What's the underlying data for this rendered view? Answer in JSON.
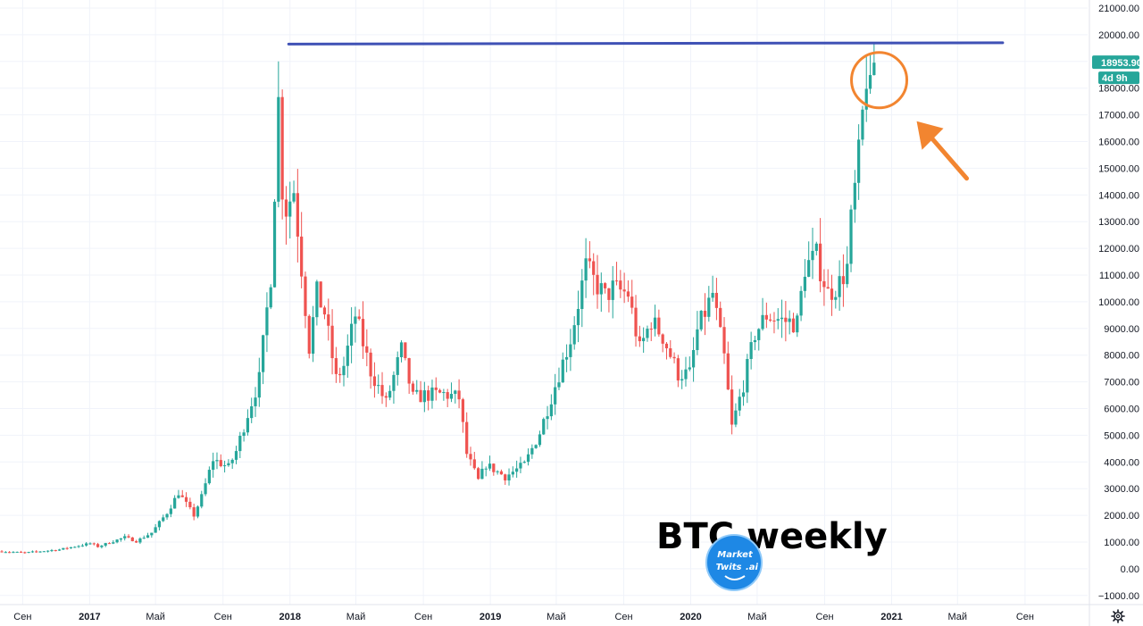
{
  "chart_data": {
    "type": "candlestick",
    "title": "BTC weekly",
    "timeframe": "weekly",
    "ylim": [
      -1500,
      21000
    ],
    "y_ticks": [
      21000,
      20000,
      19000,
      18000,
      17000,
      16000,
      15000,
      14000,
      13000,
      12000,
      11000,
      10000,
      9000,
      8000,
      7000,
      6000,
      5000,
      4000,
      3000,
      2000,
      1000,
      0,
      -1000
    ],
    "y_tick_labels": [
      "21000.00",
      "20000.00",
      "19000.00",
      "18000.00",
      "17000.00",
      "16000.00",
      "15000.00",
      "14000.00",
      "13000.00",
      "12000.00",
      "11000.00",
      "10000.00",
      "9000.00",
      "8000.00",
      "7000.00",
      "6000.00",
      "5000.00",
      "4000.00",
      "3000.00",
      "2000.00",
      "1000.00",
      "0.00",
      "−1000.00"
    ],
    "x_range": [
      "2016-07-25",
      "2021-11-01"
    ],
    "x_ticks": [
      {
        "date": "2016-09-01",
        "label": "Сен",
        "major": false
      },
      {
        "date": "2017-01-01",
        "label": "2017",
        "major": true
      },
      {
        "date": "2017-05-01",
        "label": "Май",
        "major": false
      },
      {
        "date": "2017-09-01",
        "label": "Сен",
        "major": false
      },
      {
        "date": "2018-01-01",
        "label": "2018",
        "major": true
      },
      {
        "date": "2018-05-01",
        "label": "Май",
        "major": false
      },
      {
        "date": "2018-09-01",
        "label": "Сен",
        "major": false
      },
      {
        "date": "2019-01-01",
        "label": "2019",
        "major": true
      },
      {
        "date": "2019-05-01",
        "label": "Май",
        "major": false
      },
      {
        "date": "2019-09-01",
        "label": "Сен",
        "major": false
      },
      {
        "date": "2020-01-01",
        "label": "2020",
        "major": true
      },
      {
        "date": "2020-05-01",
        "label": "Май",
        "major": false
      },
      {
        "date": "2020-09-01",
        "label": "Сен",
        "major": false
      },
      {
        "date": "2021-01-01",
        "label": "2021",
        "major": true
      },
      {
        "date": "2021-05-01",
        "label": "Май",
        "major": false
      },
      {
        "date": "2021-09-01",
        "label": "Сен",
        "major": false
      }
    ],
    "close_anchors": [
      [
        "2016-07-25",
        650
      ],
      [
        "2016-09-05",
        600
      ],
      [
        "2016-11-07",
        720
      ],
      [
        "2017-01-02",
        950
      ],
      [
        "2017-01-16",
        830
      ],
      [
        "2017-03-06",
        1180
      ],
      [
        "2017-03-27",
        1030
      ],
      [
        "2017-04-24",
        1350
      ],
      [
        "2017-05-22",
        2100
      ],
      [
        "2017-06-12",
        2850
      ],
      [
        "2017-07-10",
        2000
      ],
      [
        "2017-07-24",
        2700
      ],
      [
        "2017-08-14",
        4100
      ],
      [
        "2017-09-11",
        3800
      ],
      [
        "2017-09-25",
        4400
      ],
      [
        "2017-10-16",
        5800
      ],
      [
        "2017-11-06",
        7100
      ],
      [
        "2017-11-27",
        11000
      ],
      [
        "2017-12-11",
        17500
      ],
      [
        "2017-12-18",
        14300
      ],
      [
        "2017-12-25",
        13500
      ],
      [
        "2018-01-08",
        14200
      ],
      [
        "2018-01-22",
        11300
      ],
      [
        "2018-02-05",
        8300
      ],
      [
        "2018-02-19",
        10300
      ],
      [
        "2018-03-05",
        9600
      ],
      [
        "2018-03-26",
        7100
      ],
      [
        "2018-04-09",
        7600
      ],
      [
        "2018-04-30",
        9500
      ],
      [
        "2018-05-28",
        7400
      ],
      [
        "2018-06-25",
        6200
      ],
      [
        "2018-07-23",
        8200
      ],
      [
        "2018-08-13",
        6400
      ],
      [
        "2018-09-03",
        6500
      ],
      [
        "2018-10-08",
        6550
      ],
      [
        "2018-11-05",
        6400
      ],
      [
        "2018-11-19",
        4300
      ],
      [
        "2018-12-10",
        3300
      ],
      [
        "2018-12-24",
        3900
      ],
      [
        "2019-01-28",
        3450
      ],
      [
        "2019-03-04",
        3900
      ],
      [
        "2019-04-01",
        5100
      ],
      [
        "2019-05-06",
        7300
      ],
      [
        "2019-05-27",
        8600
      ],
      [
        "2019-06-24",
        11300
      ],
      [
        "2019-07-08",
        10800
      ],
      [
        "2019-07-29",
        10200
      ],
      [
        "2019-08-12",
        10500
      ],
      [
        "2019-09-09",
        10300
      ],
      [
        "2019-09-30",
        8200
      ],
      [
        "2019-10-21",
        9300
      ],
      [
        "2019-11-11",
        8700
      ],
      [
        "2019-12-09",
        7300
      ],
      [
        "2019-12-30",
        7300
      ],
      [
        "2020-01-13",
        8900
      ],
      [
        "2020-02-10",
        10300
      ],
      [
        "2020-03-02",
        7900
      ],
      [
        "2020-03-16",
        5300
      ],
      [
        "2020-04-06",
        6900
      ],
      [
        "2020-04-27",
        8800
      ],
      [
        "2020-05-18",
        9500
      ],
      [
        "2020-06-15",
        9300
      ],
      [
        "2020-07-13",
        9200
      ],
      [
        "2020-07-27",
        11300
      ],
      [
        "2020-08-17",
        11700
      ],
      [
        "2020-09-07",
        10300
      ],
      [
        "2020-09-28",
        10700
      ],
      [
        "2020-10-12",
        11300
      ],
      [
        "2020-10-19",
        13000
      ],
      [
        "2020-11-02",
        15400
      ],
      [
        "2020-11-16",
        18500
      ],
      [
        "2020-11-23",
        17700
      ],
      [
        "2020-11-30",
        18953.9
      ]
    ],
    "series": [
      {
        "name": "BTC weekly"
      }
    ],
    "annotations": {
      "resistance_line": {
        "start": "2017-11-27",
        "end": "2021-09-01",
        "y_start": 19650,
        "y_end": 19700,
        "color": "#3f51b5"
      },
      "circle": {
        "date": "2020-11-23",
        "y": 18300,
        "color": "#f28530"
      },
      "arrow": {
        "color": "#f28530"
      }
    },
    "last_price": {
      "label": "18953.90",
      "countdown": "4d 9h",
      "value": 18953.9,
      "color": "#26a69a"
    },
    "watermark": {
      "title": "BTC weekly",
      "logo_line1": "Market",
      "logo_line2": "Twits",
      "logo_suffix": ".ai",
      "logo_color": "#1e88e5"
    },
    "colors": {
      "up": "#26a69a",
      "down": "#ef5350",
      "grid": "#f0f3fa",
      "axis_text": "#131722"
    },
    "grid": true,
    "legend": "none"
  },
  "ui": {
    "settings_icon": "gear-icon"
  }
}
